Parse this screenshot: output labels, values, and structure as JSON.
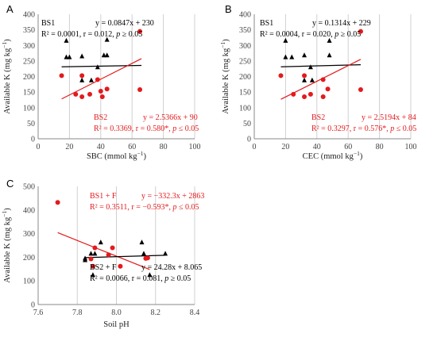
{
  "chart_data": [
    {
      "type": "scatter",
      "panel_label": "A",
      "xlabel_parts": [
        "SBC (mmol kg",
        "−1",
        ")"
      ],
      "ylabel_parts": [
        "Available K (mg kg",
        "−1",
        ")"
      ],
      "xlim": [
        0,
        100
      ],
      "ylim": [
        0,
        400
      ],
      "xticks": [
        "0",
        "20",
        "40",
        "60",
        "80",
        "100"
      ],
      "yticks": [
        "0",
        "50",
        "100",
        "150",
        "200",
        "250",
        "300",
        "350",
        "400"
      ],
      "grid": "vertical",
      "series": [
        {
          "name": "BS1",
          "marker": "triangle",
          "color": "#000000",
          "points": [
            [
              18,
              315
            ],
            [
              18,
              262
            ],
            [
              20,
              262
            ],
            [
              28,
              265
            ],
            [
              28,
              188
            ],
            [
              34,
              188
            ],
            [
              38,
              230
            ],
            [
              42,
              268
            ],
            [
              44,
              318
            ],
            [
              44,
              268
            ]
          ],
          "fit_x": [
            15,
            66
          ]
        },
        {
          "name": "BS2",
          "marker": "circle",
          "color": "#e41a1c",
          "points": [
            [
              15,
              203
            ],
            [
              24,
              143
            ],
            [
              28,
              135
            ],
            [
              28,
              203
            ],
            [
              33,
              143
            ],
            [
              38,
              190
            ],
            [
              40,
              153
            ],
            [
              41,
              135
            ],
            [
              44,
              160
            ],
            [
              65,
              345
            ],
            [
              65,
              158
            ]
          ],
          "fit_x": [
            15,
            66
          ]
        }
      ],
      "fits": [
        {
          "slope": 0.0847,
          "intercept": 230,
          "color": "#000000"
        },
        {
          "slope": 2.5366,
          "intercept": 90,
          "color": "#e41a1c"
        }
      ],
      "annotations": [
        {
          "lines": [
            [
              "BS1"
            ],
            [
              "R² = 0.0001, r = 0.012, ",
              "p",
              " ≥ 0.05"
            ]
          ],
          "eq": "y = 0.0847x + 230",
          "color": "#000000",
          "pos": "top"
        },
        {
          "lines": [
            [
              "BS2"
            ],
            [
              "R² = 0.3369, r = 0.580*, ",
              "p",
              " ≤ 0.05"
            ]
          ],
          "eq": "y = 2.5366x + 90",
          "color": "#e41a1c",
          "pos": "bottom"
        }
      ]
    },
    {
      "type": "scatter",
      "panel_label": "B",
      "xlabel_parts": [
        "CEC (mmol kg",
        "−1",
        ")"
      ],
      "ylabel_parts": [
        "Available K (mg kg",
        "−1",
        ")"
      ],
      "xlim": [
        0,
        100
      ],
      "ylim": [
        0,
        400
      ],
      "xticks": [
        "0",
        "20",
        "40",
        "60",
        "80",
        "100"
      ],
      "yticks": [
        "0",
        "50",
        "100",
        "150",
        "200",
        "250",
        "300",
        "350",
        "400"
      ],
      "grid": "vertical",
      "series": [
        {
          "name": "BS1",
          "marker": "triangle",
          "color": "#000000",
          "points": [
            [
              20,
              315
            ],
            [
              20,
              262
            ],
            [
              24,
              262
            ],
            [
              32,
              268
            ],
            [
              32,
              188
            ],
            [
              36,
              230
            ],
            [
              37,
              188
            ],
            [
              48,
              315
            ],
            [
              48,
              268
            ]
          ],
          "fit_x": [
            17,
            68
          ]
        },
        {
          "name": "BS2",
          "marker": "circle",
          "color": "#e41a1c",
          "points": [
            [
              17,
              203
            ],
            [
              25,
              143
            ],
            [
              32,
              135
            ],
            [
              32,
              203
            ],
            [
              36,
              143
            ],
            [
              44,
              190
            ],
            [
              44,
              135
            ],
            [
              47,
              160
            ],
            [
              68,
              345
            ],
            [
              68,
              158
            ]
          ],
          "fit_x": [
            17,
            68
          ]
        }
      ],
      "fits": [
        {
          "slope": 0.1314,
          "intercept": 229,
          "color": "#000000"
        },
        {
          "slope": 2.5194,
          "intercept": 84,
          "color": "#e41a1c"
        }
      ],
      "annotations": [
        {
          "lines": [
            [
              "BS1"
            ],
            [
              "R² = 0.0004, r = 0.020, ",
              "p",
              " ≥ 0.05"
            ]
          ],
          "eq": "y = 0.1314x + 229",
          "color": "#000000",
          "pos": "top"
        },
        {
          "lines": [
            [
              "BS2"
            ],
            [
              "R² = 0.3297, r = 0.576*, ",
              "p",
              " ≤ 0.05"
            ]
          ],
          "eq": "y = 2.5194x + 84",
          "color": "#e41a1c",
          "pos": "bottom"
        }
      ]
    },
    {
      "type": "scatter",
      "panel_label": "C",
      "xlabel_parts": [
        "Soil pH",
        "",
        ""
      ],
      "ylabel_parts": [
        "Available K (mg kg",
        "−1",
        ")"
      ],
      "xlim": [
        7.6,
        8.4
      ],
      "ylim": [
        0,
        500
      ],
      "xticks": [
        "7.6",
        "7.8",
        "8.0",
        "8.2",
        "8.4"
      ],
      "yticks": [
        "0",
        "100",
        "200",
        "300",
        "400",
        "500"
      ],
      "grid": "vertical",
      "series": [
        {
          "name": "BS1 + F",
          "marker": "circle",
          "color": "#e41a1c",
          "points": [
            [
              7.7,
              432
            ],
            [
              7.87,
              193
            ],
            [
              7.88,
              162
            ],
            [
              7.89,
              240
            ],
            [
              7.96,
              210
            ],
            [
              7.98,
              240
            ],
            [
              8.02,
              162
            ],
            [
              8.15,
              195
            ],
            [
              8.16,
              197
            ]
          ],
          "fit_x": [
            7.7,
            8.17
          ]
        },
        {
          "name": "BS2 + F",
          "marker": "triangle",
          "color": "#000000",
          "points": [
            [
              7.84,
              195
            ],
            [
              7.84,
              188
            ],
            [
              7.87,
              215
            ],
            [
              7.88,
              125
            ],
            [
              7.89,
              215
            ],
            [
              7.92,
              263
            ],
            [
              8.13,
              263
            ],
            [
              8.14,
              215
            ],
            [
              8.17,
              125
            ],
            [
              8.25,
              215
            ]
          ],
          "fit_x": [
            7.84,
            8.25
          ]
        }
      ],
      "fits": [
        {
          "slope": -332.3,
          "intercept": 2863,
          "color": "#e41a1c"
        },
        {
          "slope": 24.28,
          "intercept": 8.065,
          "color": "#000000"
        }
      ],
      "annotations": [
        {
          "lines": [
            [
              "BS1 + F"
            ],
            [
              "R² = 0.3511, r = −0.593*, ",
              "p",
              " ≤ 0.05"
            ]
          ],
          "eq": "y = −332.3x + 2863",
          "color": "#e41a1c",
          "pos": "top"
        },
        {
          "lines": [
            [
              "BS2 + F"
            ],
            [
              "R² = 0.0066, r = 0.081, ",
              "p",
              " ≥ 0.05"
            ]
          ],
          "eq": "y = 24.28x + 8.065",
          "color": "#000000",
          "pos": "bottom"
        }
      ]
    }
  ]
}
